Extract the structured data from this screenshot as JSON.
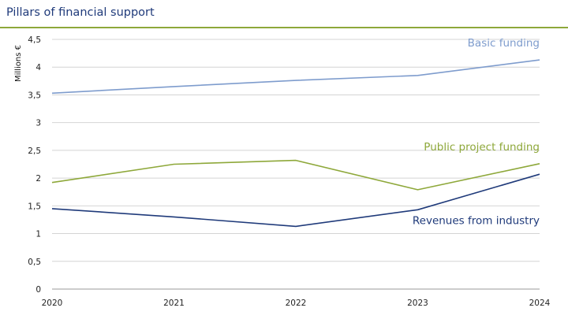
{
  "page": {
    "title": "Pillars of financial support"
  },
  "chart_data": {
    "type": "line",
    "title": "Pillars of financial support",
    "ylabel": "Millions €",
    "xlabel": "",
    "x": [
      "2020",
      "2021",
      "2022",
      "2023",
      "2024"
    ],
    "ylim": [
      0,
      4.5
    ],
    "yticks": [
      "0",
      "0,5",
      "1",
      "1,5",
      "2",
      "2,5",
      "3",
      "3,5",
      "4",
      "4,5"
    ],
    "grid": true,
    "series": [
      {
        "name": "Basic funding",
        "color": "#7e9ccd",
        "values": [
          3.53,
          3.65,
          3.76,
          3.85,
          4.13
        ]
      },
      {
        "name": "Public project funding",
        "color": "#8ea83a",
        "values": [
          1.92,
          2.25,
          2.32,
          1.79,
          2.26
        ]
      },
      {
        "name": "Revenues from industry",
        "color": "#1f3a7a",
        "values": [
          1.45,
          1.3,
          1.13,
          1.43,
          2.07
        ]
      }
    ]
  }
}
